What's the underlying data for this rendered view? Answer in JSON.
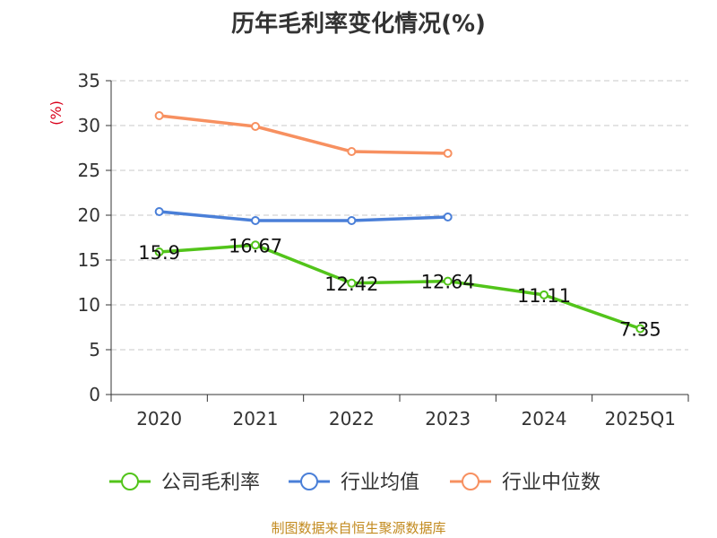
{
  "chart_data": {
    "type": "line",
    "title": "历年毛利率变化情况(%)",
    "ylabel": "(%)",
    "xlabel": "",
    "categories": [
      "2020",
      "2021",
      "2022",
      "2023",
      "2024",
      "2025Q1"
    ],
    "ylim": [
      0,
      35
    ],
    "yticks": [
      0,
      5,
      10,
      15,
      20,
      25,
      30,
      35
    ],
    "grid": true,
    "legend_position": "bottom",
    "series": [
      {
        "name": "公司毛利率",
        "color": "#52c41a",
        "values": [
          15.9,
          16.67,
          12.42,
          12.64,
          11.11,
          7.35
        ],
        "labels": [
          "15.9",
          "16.67",
          "12.42",
          "12.64",
          "11.11",
          "7.35"
        ]
      },
      {
        "name": "行业均值",
        "color": "#4a7fd8",
        "values": [
          20.4,
          19.4,
          19.4,
          19.8,
          null,
          null
        ]
      },
      {
        "name": "行业中位数",
        "color": "#f79060",
        "values": [
          31.1,
          29.9,
          27.1,
          26.9,
          null,
          null
        ]
      }
    ]
  },
  "footer": {
    "source": "制图数据来自恒生聚源数据库"
  }
}
